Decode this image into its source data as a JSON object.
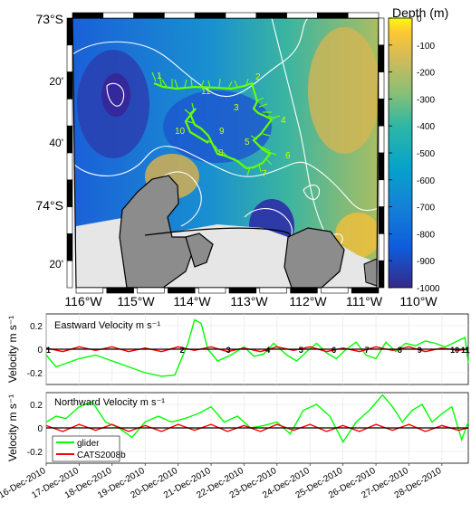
{
  "map": {
    "lat_ticks": [
      "73°S",
      "20'",
      "40'",
      "74°S",
      "20'"
    ],
    "lon_ticks": [
      "116°W",
      "115°W",
      "114°W",
      "113°W",
      "112°W",
      "111°W",
      "110°W"
    ],
    "track_labels": [
      "1",
      "2",
      "3",
      "4",
      "5",
      "6",
      "7",
      "8",
      "9",
      "10",
      "11"
    ],
    "colors": {
      "track": "#66ff00",
      "land": "#8c8c8c",
      "ice_shelf": "#e6e6e6",
      "contour": "#ffffff"
    }
  },
  "colorbar": {
    "label": "Depth (m)",
    "ticks": [
      "0",
      "-100",
      "-200",
      "-300",
      "-400",
      "-500",
      "-600",
      "-700",
      "-800",
      "-900",
      "-1000"
    ],
    "range": [
      -1000,
      0
    ],
    "colormap": "parula"
  },
  "chart_data": [
    {
      "type": "line",
      "title": "Eastward Velocity m s⁻¹",
      "ylabel": "Velocity m s⁻¹",
      "ylim": [
        -0.3,
        0.3
      ],
      "yticks": [
        "0.2",
        "0",
        "-0.2"
      ],
      "xlim": [
        0,
        12.8
      ],
      "grid": true,
      "marker_labels": [
        {
          "label": "1",
          "x": 0.0
        },
        {
          "label": "2",
          "x": 4.0
        },
        {
          "label": "3",
          "x": 5.4
        },
        {
          "label": "4",
          "x": 6.6
        },
        {
          "label": "5",
          "x": 7.6
        },
        {
          "label": "6",
          "x": 8.6
        },
        {
          "label": "7",
          "x": 9.6
        },
        {
          "label": "8",
          "x": 10.6
        },
        {
          "label": "9",
          "x": 11.2
        },
        {
          "label": "10",
          "x": 12.2
        },
        {
          "label": "11",
          "x": 13.5
        }
      ],
      "series": [
        {
          "color": "#00ff00",
          "x": [
            0,
            0.3,
            0.6,
            1.0,
            1.5,
            2.0,
            2.5,
            3.0,
            3.5,
            3.9,
            4.3,
            4.5,
            4.7,
            4.9,
            5.2,
            5.6,
            6.0,
            6.3,
            6.6,
            6.9,
            7.3,
            7.6,
            7.9,
            8.2,
            8.5,
            8.8,
            9.1,
            9.4,
            9.7,
            10.0,
            10.3,
            10.6,
            10.9,
            11.2,
            11.5,
            11.8,
            12.1,
            12.4,
            12.7,
            12.8
          ],
          "y": [
            -0.05,
            -0.15,
            -0.12,
            -0.08,
            -0.05,
            -0.1,
            -0.15,
            -0.2,
            -0.23,
            -0.22,
            0.05,
            0.25,
            0.22,
            0.0,
            -0.1,
            -0.05,
            0.02,
            -0.06,
            -0.04,
            0.05,
            -0.05,
            -0.1,
            -0.02,
            0.05,
            -0.03,
            -0.08,
            0.0,
            0.06,
            -0.05,
            -0.08,
            0.06,
            -0.02,
            0.05,
            0.03,
            0.07,
            0.05,
            0.02,
            0.06,
            0.1,
            -0.12
          ]
        },
        {
          "color": "#ff0000",
          "x": [
            0,
            0.5,
            1.0,
            1.5,
            2.0,
            2.5,
            3.0,
            3.5,
            4.0,
            4.5,
            5.0,
            5.5,
            6.0,
            6.5,
            7.0,
            7.5,
            8.0,
            8.5,
            9.0,
            9.5,
            10.0,
            10.5,
            11.0,
            11.5,
            12.0,
            12.5,
            12.8
          ],
          "y": [
            0.01,
            -0.02,
            0.02,
            -0.01,
            0.02,
            -0.02,
            0.01,
            -0.02,
            0.02,
            -0.01,
            0.02,
            -0.02,
            0.01,
            -0.02,
            0.02,
            -0.01,
            0.02,
            -0.02,
            0.01,
            -0.02,
            0.02,
            -0.01,
            0.02,
            -0.02,
            0.01,
            -0.01,
            0.0
          ]
        },
        {
          "color": "#000000",
          "x": [
            0,
            12.8
          ],
          "y": [
            0,
            0
          ]
        }
      ]
    },
    {
      "type": "line",
      "title": "Northward Velocity m s⁻¹",
      "ylabel": "Velocity m s⁻¹",
      "ylim": [
        -0.3,
        0.3
      ],
      "yticks": [
        "0.2",
        "0",
        "-0.2"
      ],
      "xlim": [
        0,
        12.8
      ],
      "grid": true,
      "xticks": [
        "16-Dec-2010",
        "17-Dec-2010",
        "18-Dec-2010",
        "19-Dec-2010",
        "20-Dec-2010",
        "21-Dec-2010",
        "22-Dec-2010",
        "23-Dec-2010",
        "24-Dec-2010",
        "25-Dec-2010",
        "26-Dec-2010",
        "27-Dec-2010",
        "28-Dec-2010"
      ],
      "legend": {
        "placement": "bottom-left",
        "entries": [
          "glider",
          "CATS2008b"
        ]
      },
      "series": [
        {
          "name": "glider",
          "color": "#00ff00",
          "x": [
            0,
            0.3,
            0.6,
            1.0,
            1.4,
            1.8,
            2.2,
            2.6,
            3.0,
            3.4,
            3.8,
            4.2,
            4.6,
            5.0,
            5.4,
            5.8,
            6.2,
            6.6,
            7.0,
            7.4,
            7.8,
            8.2,
            8.6,
            9.0,
            9.4,
            9.8,
            10.2,
            10.5,
            10.8,
            11.1,
            11.4,
            11.7,
            12.0,
            12.3,
            12.6,
            12.8
          ],
          "y": [
            0.05,
            0.1,
            0.08,
            0.18,
            0.22,
            0.05,
            0.0,
            -0.08,
            0.05,
            0.1,
            0.05,
            0.08,
            0.12,
            0.18,
            0.05,
            0.1,
            0.0,
            0.02,
            0.05,
            -0.05,
            0.15,
            0.2,
            0.1,
            -0.12,
            0.05,
            0.15,
            0.28,
            0.18,
            0.05,
            0.15,
            0.2,
            0.05,
            0.12,
            0.18,
            -0.1,
            0.05
          ]
        },
        {
          "name": "CATS2008b",
          "color": "#ff0000",
          "x": [
            0,
            0.5,
            1.0,
            1.5,
            2.0,
            2.5,
            3.0,
            3.5,
            4.0,
            4.5,
            5.0,
            5.5,
            6.0,
            6.5,
            7.0,
            7.5,
            8.0,
            8.5,
            9.0,
            9.5,
            10.0,
            10.5,
            11.0,
            11.5,
            12.0,
            12.5,
            12.8
          ],
          "y": [
            0.02,
            -0.03,
            0.03,
            -0.02,
            0.03,
            -0.03,
            0.02,
            -0.03,
            0.03,
            -0.02,
            0.03,
            -0.03,
            0.02,
            -0.03,
            0.03,
            -0.02,
            0.03,
            -0.03,
            0.02,
            -0.03,
            0.03,
            -0.02,
            0.03,
            -0.03,
            0.02,
            -0.02,
            0.0
          ]
        },
        {
          "color": "#000000",
          "x": [
            0,
            12.8
          ],
          "y": [
            0,
            0
          ]
        }
      ]
    }
  ]
}
